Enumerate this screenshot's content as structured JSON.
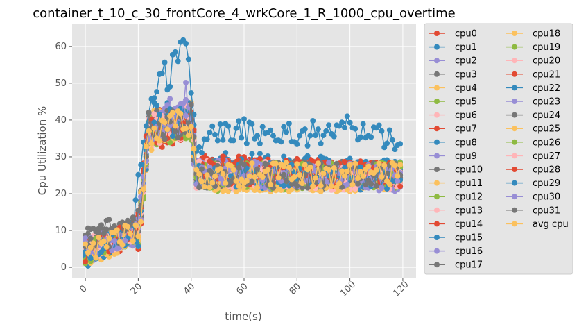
{
  "chart_data": {
    "type": "line",
    "title": "container_t_10_c_30_frontCore_4_wrkCore_1_R_1000_cpu_overtime",
    "xlabel": "time(s)",
    "ylabel": "Cpu Utilization %",
    "xlim": [
      -5,
      125
    ],
    "ylim": [
      -3,
      66
    ],
    "xticks": [
      0,
      20,
      40,
      60,
      80,
      100,
      120
    ],
    "yticks": [
      0,
      10,
      20,
      30,
      40,
      50,
      60
    ],
    "grid": true,
    "legend_position": "outside-right",
    "legend_columns": 2,
    "series_style": "line-with-circle-markers",
    "series": [
      {
        "name": "cpu0",
        "color": "#E24A33",
        "anchors": [
          [
            0,
            4
          ],
          [
            20,
            8
          ],
          [
            24,
            38
          ],
          [
            40,
            40
          ],
          [
            42,
            27
          ],
          [
            119,
            25
          ]
        ],
        "seed": 1
      },
      {
        "name": "cpu1",
        "color": "#348ABD",
        "anchors": [
          [
            0,
            3
          ],
          [
            20,
            10
          ],
          [
            24,
            40
          ],
          [
            40,
            42
          ],
          [
            42,
            28
          ],
          [
            119,
            26
          ]
        ],
        "seed": 2
      },
      {
        "name": "cpu2",
        "color": "#988ED5",
        "anchors": [
          [
            0,
            5
          ],
          [
            20,
            9
          ],
          [
            24,
            37
          ],
          [
            40,
            41
          ],
          [
            42,
            26
          ],
          [
            119,
            24
          ]
        ],
        "seed": 3
      },
      {
        "name": "cpu3",
        "color": "#777777",
        "anchors": [
          [
            0,
            6
          ],
          [
            20,
            11
          ],
          [
            24,
            39
          ],
          [
            40,
            40
          ],
          [
            42,
            25
          ],
          [
            119,
            25
          ]
        ],
        "seed": 4
      },
      {
        "name": "cpu4",
        "color": "#FBC15E",
        "anchors": [
          [
            0,
            3
          ],
          [
            20,
            9
          ],
          [
            24,
            38
          ],
          [
            40,
            41
          ],
          [
            42,
            24
          ],
          [
            119,
            24
          ]
        ],
        "seed": 5
      },
      {
        "name": "cpu5",
        "color": "#8EBA42",
        "anchors": [
          [
            0,
            4
          ],
          [
            20,
            10
          ],
          [
            24,
            36
          ],
          [
            40,
            39
          ],
          [
            42,
            25
          ],
          [
            119,
            25
          ]
        ],
        "seed": 6
      },
      {
        "name": "cpu6",
        "color": "#FFB5B8",
        "anchors": [
          [
            0,
            5
          ],
          [
            20,
            10
          ],
          [
            24,
            37
          ],
          [
            40,
            40
          ],
          [
            42,
            26
          ],
          [
            119,
            24
          ]
        ],
        "seed": 7
      },
      {
        "name": "cpu7",
        "color": "#E24A33",
        "anchors": [
          [
            0,
            4
          ],
          [
            20,
            11
          ],
          [
            24,
            36
          ],
          [
            40,
            38
          ],
          [
            42,
            27
          ],
          [
            119,
            25
          ]
        ],
        "seed": 8
      },
      {
        "name": "cpu8",
        "color": "#348ABD",
        "anchors": [
          [
            0,
            5
          ],
          [
            20,
            10
          ],
          [
            24,
            38
          ],
          [
            40,
            42
          ],
          [
            42,
            26
          ],
          [
            119,
            26
          ]
        ],
        "seed": 9
      },
      {
        "name": "cpu9",
        "color": "#988ED5",
        "anchors": [
          [
            0,
            4
          ],
          [
            20,
            9
          ],
          [
            24,
            37
          ],
          [
            40,
            40
          ],
          [
            42,
            25
          ],
          [
            119,
            24
          ]
        ],
        "seed": 10
      },
      {
        "name": "cpu10",
        "color": "#777777",
        "anchors": [
          [
            0,
            6
          ],
          [
            20,
            10
          ],
          [
            24,
            38
          ],
          [
            40,
            41
          ],
          [
            42,
            24
          ],
          [
            119,
            25
          ]
        ],
        "seed": 11
      },
      {
        "name": "cpu11",
        "color": "#FBC15E",
        "anchors": [
          [
            0,
            3
          ],
          [
            20,
            9
          ],
          [
            24,
            37
          ],
          [
            40,
            40
          ],
          [
            42,
            25
          ],
          [
            119,
            24
          ]
        ],
        "seed": 12
      },
      {
        "name": "cpu12",
        "color": "#8EBA42",
        "anchors": [
          [
            0,
            4
          ],
          [
            20,
            10
          ],
          [
            24,
            36
          ],
          [
            40,
            39
          ],
          [
            42,
            24
          ],
          [
            119,
            25
          ]
        ],
        "seed": 13
      },
      {
        "name": "cpu13",
        "color": "#FFB5B8",
        "anchors": [
          [
            0,
            5
          ],
          [
            20,
            11
          ],
          [
            24,
            37
          ],
          [
            40,
            40
          ],
          [
            42,
            26
          ],
          [
            119,
            24
          ]
        ],
        "seed": 14
      },
      {
        "name": "cpu14",
        "color": "#E24A33",
        "anchors": [
          [
            0,
            5
          ],
          [
            20,
            10
          ],
          [
            24,
            38
          ],
          [
            40,
            40
          ],
          [
            42,
            26
          ],
          [
            119,
            25
          ]
        ],
        "seed": 15
      },
      {
        "name": "cpu15",
        "color": "#348ABD",
        "anchors": [
          [
            0,
            4
          ],
          [
            20,
            9
          ],
          [
            24,
            37
          ],
          [
            40,
            41
          ],
          [
            42,
            25
          ],
          [
            119,
            24
          ]
        ],
        "seed": 16
      },
      {
        "name": "cpu16",
        "color": "#988ED5",
        "anchors": [
          [
            0,
            5
          ],
          [
            20,
            10
          ],
          [
            24,
            38
          ],
          [
            40,
            42
          ],
          [
            42,
            25
          ],
          [
            119,
            25
          ]
        ],
        "seed": 17
      },
      {
        "name": "cpu17",
        "color": "#777777",
        "anchors": [
          [
            0,
            5
          ],
          [
            20,
            11
          ],
          [
            24,
            38
          ],
          [
            40,
            40
          ],
          [
            42,
            26
          ],
          [
            119,
            25
          ]
        ],
        "seed": 18
      },
      {
        "name": "cpu18",
        "color": "#FBC15E",
        "anchors": [
          [
            0,
            3
          ],
          [
            20,
            9
          ],
          [
            24,
            36
          ],
          [
            40,
            40
          ],
          [
            42,
            24
          ],
          [
            119,
            24
          ]
        ],
        "seed": 19
      },
      {
        "name": "cpu19",
        "color": "#8EBA42",
        "anchors": [
          [
            0,
            4
          ],
          [
            20,
            10
          ],
          [
            24,
            37
          ],
          [
            40,
            39
          ],
          [
            42,
            25
          ],
          [
            119,
            25
          ]
        ],
        "seed": 20
      },
      {
        "name": "cpu20",
        "color": "#FFB5B8",
        "anchors": [
          [
            0,
            4
          ],
          [
            20,
            10
          ],
          [
            24,
            36
          ],
          [
            40,
            40
          ],
          [
            42,
            25
          ],
          [
            119,
            24
          ]
        ],
        "seed": 21
      },
      {
        "name": "cpu21",
        "color": "#E24A33",
        "anchors": [
          [
            0,
            5
          ],
          [
            20,
            10
          ],
          [
            24,
            37
          ],
          [
            40,
            40
          ],
          [
            42,
            26
          ],
          [
            119,
            25
          ]
        ],
        "seed": 22
      },
      {
        "name": "cpu22",
        "color": "#348ABD",
        "anchors": [
          [
            0,
            4
          ],
          [
            18,
            10
          ],
          [
            22,
            33
          ],
          [
            26,
            50
          ],
          [
            32,
            52
          ],
          [
            38,
            62
          ],
          [
            40,
            50
          ],
          [
            42,
            34
          ],
          [
            60,
            37
          ],
          [
            80,
            36
          ],
          [
            100,
            38
          ],
          [
            119,
            35
          ]
        ],
        "seed": 23
      },
      {
        "name": "cpu23",
        "color": "#988ED5",
        "anchors": [
          [
            0,
            5
          ],
          [
            20,
            10
          ],
          [
            24,
            37
          ],
          [
            38,
            46
          ],
          [
            42,
            26
          ],
          [
            119,
            24
          ]
        ],
        "seed": 24
      },
      {
        "name": "cpu24",
        "color": "#777777",
        "anchors": [
          [
            0,
            10
          ],
          [
            20,
            11
          ],
          [
            24,
            38
          ],
          [
            40,
            41
          ],
          [
            42,
            25
          ],
          [
            119,
            25
          ]
        ],
        "seed": 25
      },
      {
        "name": "cpu25",
        "color": "#FBC15E",
        "anchors": [
          [
            0,
            3
          ],
          [
            20,
            9
          ],
          [
            24,
            37
          ],
          [
            40,
            40
          ],
          [
            42,
            24
          ],
          [
            119,
            24
          ]
        ],
        "seed": 26
      },
      {
        "name": "cpu26",
        "color": "#8EBA42",
        "anchors": [
          [
            0,
            4
          ],
          [
            20,
            10
          ],
          [
            24,
            36
          ],
          [
            40,
            39
          ],
          [
            42,
            25
          ],
          [
            119,
            25
          ]
        ],
        "seed": 27
      },
      {
        "name": "cpu27",
        "color": "#FFB5B8",
        "anchors": [
          [
            0,
            4
          ],
          [
            20,
            10
          ],
          [
            24,
            37
          ],
          [
            40,
            40
          ],
          [
            42,
            26
          ],
          [
            119,
            24
          ]
        ],
        "seed": 28
      },
      {
        "name": "cpu28",
        "color": "#E24A33",
        "anchors": [
          [
            0,
            4
          ],
          [
            20,
            11
          ],
          [
            24,
            38
          ],
          [
            40,
            40
          ],
          [
            42,
            26
          ],
          [
            119,
            25
          ]
        ],
        "seed": 29
      },
      {
        "name": "cpu29",
        "color": "#348ABD",
        "anchors": [
          [
            0,
            4
          ],
          [
            20,
            10
          ],
          [
            24,
            37
          ],
          [
            40,
            41
          ],
          [
            42,
            25
          ],
          [
            119,
            24
          ]
        ],
        "seed": 30
      },
      {
        "name": "cpu30",
        "color": "#988ED5",
        "anchors": [
          [
            0,
            5
          ],
          [
            20,
            10
          ],
          [
            24,
            38
          ],
          [
            40,
            41
          ],
          [
            42,
            25
          ],
          [
            119,
            25
          ]
        ],
        "seed": 31
      },
      {
        "name": "cpu31",
        "color": "#777777",
        "anchors": [
          [
            0,
            6
          ],
          [
            20,
            11
          ],
          [
            24,
            38
          ],
          [
            40,
            40
          ],
          [
            42,
            25
          ],
          [
            119,
            25
          ]
        ],
        "seed": 32
      },
      {
        "name": "avg cpu",
        "color": "#FBC15E",
        "anchors": [
          [
            0,
            4
          ],
          [
            20,
            10
          ],
          [
            24,
            37
          ],
          [
            40,
            40
          ],
          [
            42,
            25
          ],
          [
            119,
            25
          ]
        ],
        "seed": 33
      }
    ]
  }
}
